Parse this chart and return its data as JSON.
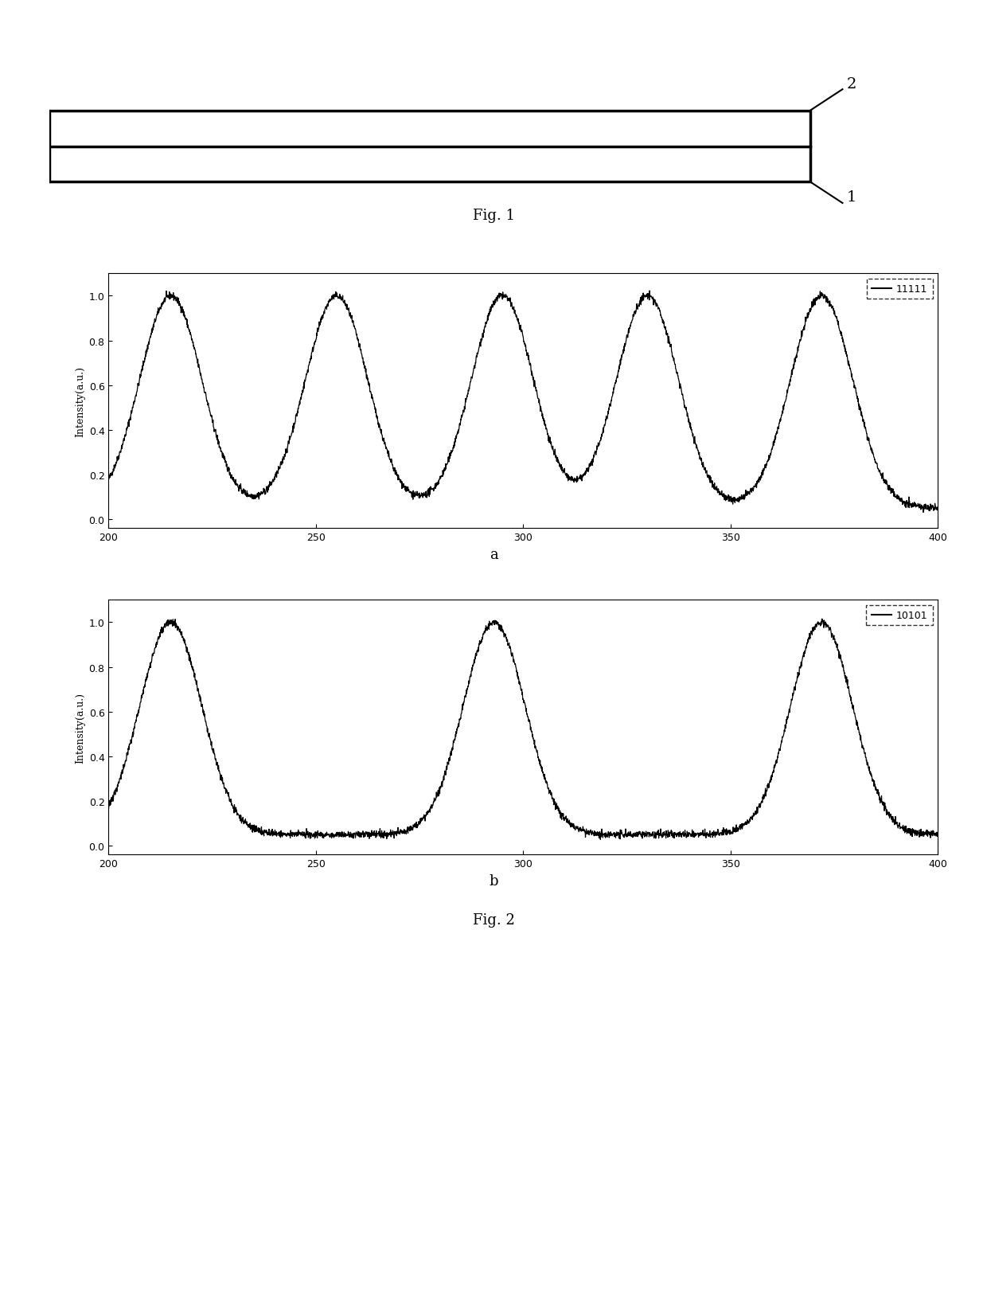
{
  "fig1_label": "Fig. 1",
  "fig2_label": "Fig. 2",
  "label_a": "a",
  "label_b": "b",
  "legend_a": "11111",
  "legend_b": "10101",
  "ylabel": "Intensity(a.u.)",
  "xmin": 200,
  "xmax": 400,
  "ymin": -0.04,
  "ymax": 1.1,
  "yticks": [
    0.0,
    0.2,
    0.4,
    0.6,
    0.8,
    1.0
  ],
  "xticks": [
    200,
    250,
    300,
    350,
    400
  ],
  "peaks_a": [
    215,
    255,
    295,
    330,
    372
  ],
  "peaks_b": [
    215,
    293,
    372
  ],
  "baseline": 0.05,
  "sigma": 7.5,
  "background_color": "#ffffff",
  "line_color": "#000000"
}
